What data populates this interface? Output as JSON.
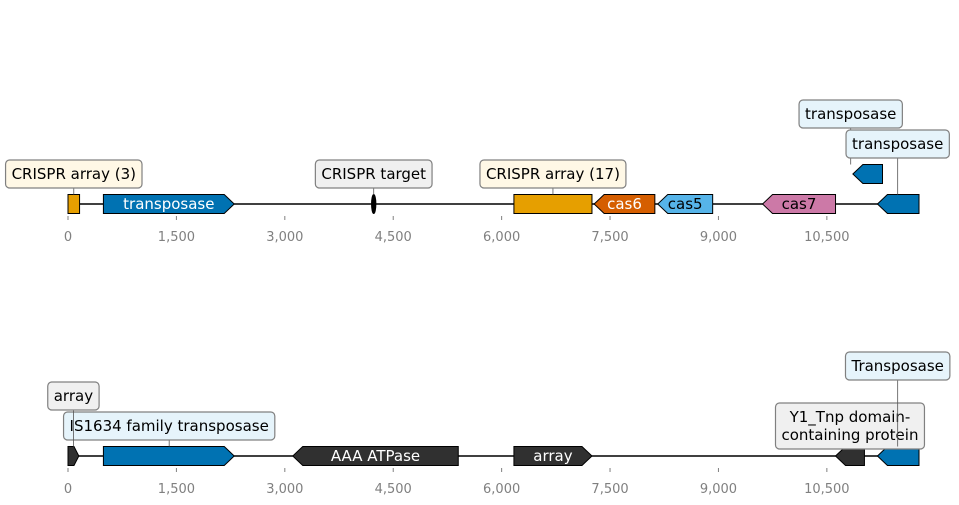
{
  "axis": {
    "domain": [
      0,
      11775
    ],
    "ticks": [
      {
        "value": 0,
        "label": "0"
      },
      {
        "value": 1500,
        "label": "1,500"
      },
      {
        "value": 3000,
        "label": "3,000"
      },
      {
        "value": 4500,
        "label": "4,500"
      },
      {
        "value": 6000,
        "label": "6,000"
      },
      {
        "value": 7500,
        "label": "7,500"
      },
      {
        "value": 9000,
        "label": "9,000"
      },
      {
        "value": 10500,
        "label": "10,500"
      }
    ]
  },
  "tracks": [
    {
      "features": [
        {
          "start": 0,
          "end": 160,
          "strand": 0,
          "color": "#e69f00",
          "text": "",
          "text_color": ""
        },
        {
          "start": 490,
          "end": 2300,
          "strand": 1,
          "color": "#0072b2",
          "text": "transposase",
          "text_color": "#ffffff"
        },
        {
          "start": 4200,
          "end": 4260,
          "strand": 0,
          "shape": "ellipse",
          "color": "#000000",
          "text": "",
          "text_color": ""
        },
        {
          "start": 6170,
          "end": 7250,
          "strand": 0,
          "color": "#e69f00",
          "text": "",
          "text_color": ""
        },
        {
          "start": 7280,
          "end": 8120,
          "strand": -1,
          "color": "#d55e00",
          "text": "cas6",
          "text_color": "#ffffff"
        },
        {
          "start": 8160,
          "end": 8920,
          "strand": -1,
          "color": "#56b4e9",
          "text": "cas5",
          "text_color": "#000000"
        },
        {
          "start": 9610,
          "end": 10620,
          "strand": -1,
          "color": "#cc79a7",
          "text": "cas7",
          "text_color": "#000000"
        },
        {
          "start": 10860,
          "end": 11270,
          "strand": -1,
          "color": "#0072b2",
          "text": "",
          "text_color": "",
          "raised": true
        },
        {
          "start": 11200,
          "end": 11775,
          "strand": -1,
          "color": "#0072b2",
          "text": "",
          "text_color": ""
        }
      ],
      "labels": [
        {
          "lines": [
            "CRISPR array (3)"
          ],
          "anchor": 80,
          "bg": "#fff8e6",
          "level": 1,
          "target": "main"
        },
        {
          "lines": [
            "CRISPR target"
          ],
          "anchor": 4230,
          "bg": "#f0f0f0",
          "level": 1,
          "target": "main"
        },
        {
          "lines": [
            "CRISPR array (17)"
          ],
          "anchor": 6710,
          "bg": "#fff8e6",
          "level": 1,
          "target": "main"
        },
        {
          "lines": [
            "transposase"
          ],
          "anchor": 10830,
          "bg": "#e6f4fb",
          "level": 3,
          "target": "raised"
        },
        {
          "lines": [
            "transposase"
          ],
          "anchor": 11480,
          "bg": "#e6f4fb",
          "level": 2,
          "target": "main"
        }
      ]
    },
    {
      "features": [
        {
          "start": 0,
          "end": 150,
          "strand": 1,
          "color": "#303030",
          "text": "",
          "text_color": ""
        },
        {
          "start": 490,
          "end": 2300,
          "strand": 1,
          "color": "#0072b2",
          "text": "",
          "text_color": ""
        },
        {
          "start": 3110,
          "end": 5400,
          "strand": -1,
          "color": "#303030",
          "text": "AAA ATPase",
          "text_color": "#ffffff"
        },
        {
          "start": 6170,
          "end": 7250,
          "strand": 1,
          "color": "#303030",
          "text": "array",
          "text_color": "#ffffff"
        },
        {
          "start": 10620,
          "end": 11020,
          "strand": -1,
          "color": "#303030",
          "text": "",
          "text_color": ""
        },
        {
          "start": 11200,
          "end": 11775,
          "strand": -1,
          "color": "#0072b2",
          "text": "",
          "text_color": ""
        }
      ],
      "labels": [
        {
          "lines": [
            "IS1634 family transposase"
          ],
          "anchor": 1400,
          "bg": "#e6f4fb",
          "level": 1,
          "target": "main"
        },
        {
          "lines": [
            "array"
          ],
          "anchor": 75,
          "bg": "#f0f0f0",
          "level": 2,
          "target": "main"
        },
        {
          "lines": [
            "Y1_Tnp domain-",
            "containing protein"
          ],
          "anchor": 10820,
          "bg": "#f0f0f0",
          "level": 1,
          "target": "main"
        },
        {
          "lines": [
            "Transposase"
          ],
          "anchor": 11480,
          "bg": "#e6f4fb",
          "level": 3,
          "target": "main"
        }
      ]
    }
  ]
}
